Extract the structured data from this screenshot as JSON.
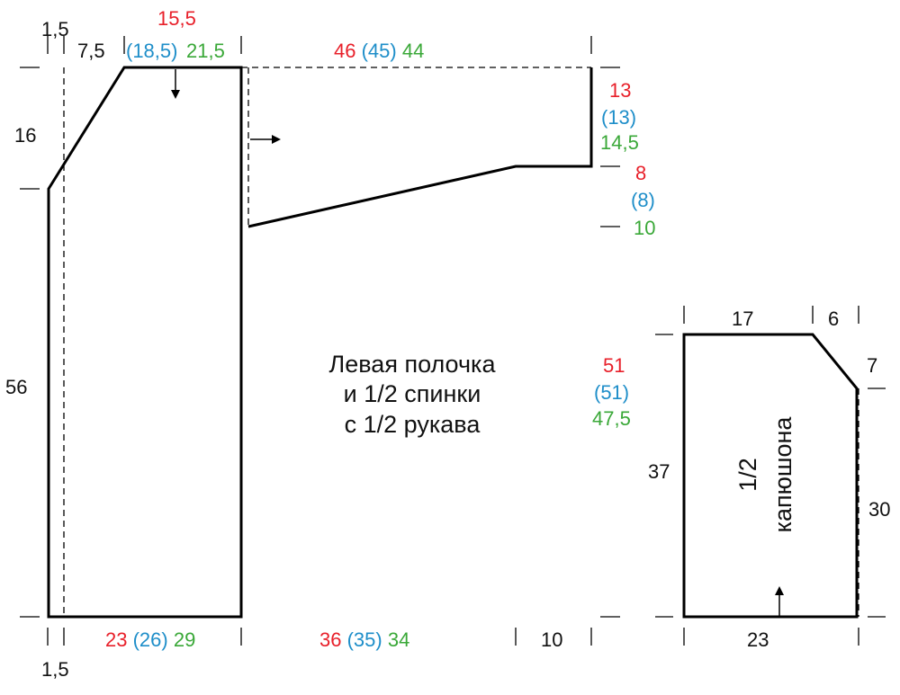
{
  "colors": {
    "size1": "#e8202a",
    "size2": "#1e8ec9",
    "size3": "#3aa838",
    "base": "#111111"
  },
  "piece_front": {
    "title_line1": "Левая полочка",
    "title_line2": "и 1/2 спинки",
    "title_line3": "с 1/2 рукава",
    "top_left_edge": "1,5",
    "shoulder_slope": "7,5",
    "neck_width": {
      "size1": "15,5",
      "size2": "(18,5)",
      "size3": "21,5"
    },
    "sleeve_length_top": {
      "size1": "46",
      "size2": "(45)",
      "size3": "44"
    },
    "neck_depth": "16",
    "body_height": "56",
    "cuff_height": {
      "size1": "13",
      "size2": "(13)",
      "size3": "14,5"
    },
    "sleeve_drop": {
      "size1": "8",
      "size2": "(8)",
      "size3": "10"
    },
    "sleeve_total_depth": {
      "size1": "51",
      "size2": "(51)",
      "size3": "47,5"
    },
    "half_width": {
      "size1": "23",
      "size2": "(26)",
      "size3": "29"
    },
    "sleeve_length_bottom": {
      "size1": "36",
      "size2": "(35)",
      "size3": "34"
    },
    "cuff_length": "10",
    "bottom_left_edge": "1,5"
  },
  "piece_hood": {
    "title_line1": "1/2",
    "title_line2": "капюшона",
    "top_width": "17",
    "corner_width": "6",
    "corner_height": "7",
    "left_height": "37",
    "right_height": "30",
    "bottom_width": "23"
  }
}
